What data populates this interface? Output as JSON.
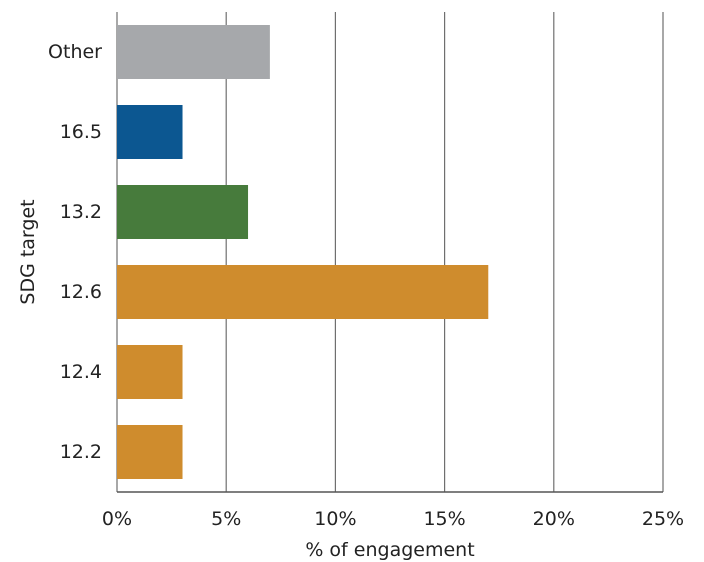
{
  "chart_data": {
    "type": "bar",
    "orientation": "horizontal",
    "title": "",
    "xlabel": "% of engagement",
    "ylabel": "SDG target",
    "xlim": [
      0,
      25
    ],
    "x_ticks": [
      "0%",
      "5%",
      "10%",
      "15%",
      "20%",
      "25%"
    ],
    "grid": "vertical",
    "categories": [
      "Other",
      "16.5",
      "13.2",
      "12.6",
      "12.4",
      "12.2"
    ],
    "values": [
      7,
      3,
      6,
      17,
      3,
      3
    ],
    "colors": [
      "#a6a8ab",
      "#0c5791",
      "#477b3c",
      "#cf8c2d",
      "#cf8c2d",
      "#cf8c2d"
    ]
  }
}
